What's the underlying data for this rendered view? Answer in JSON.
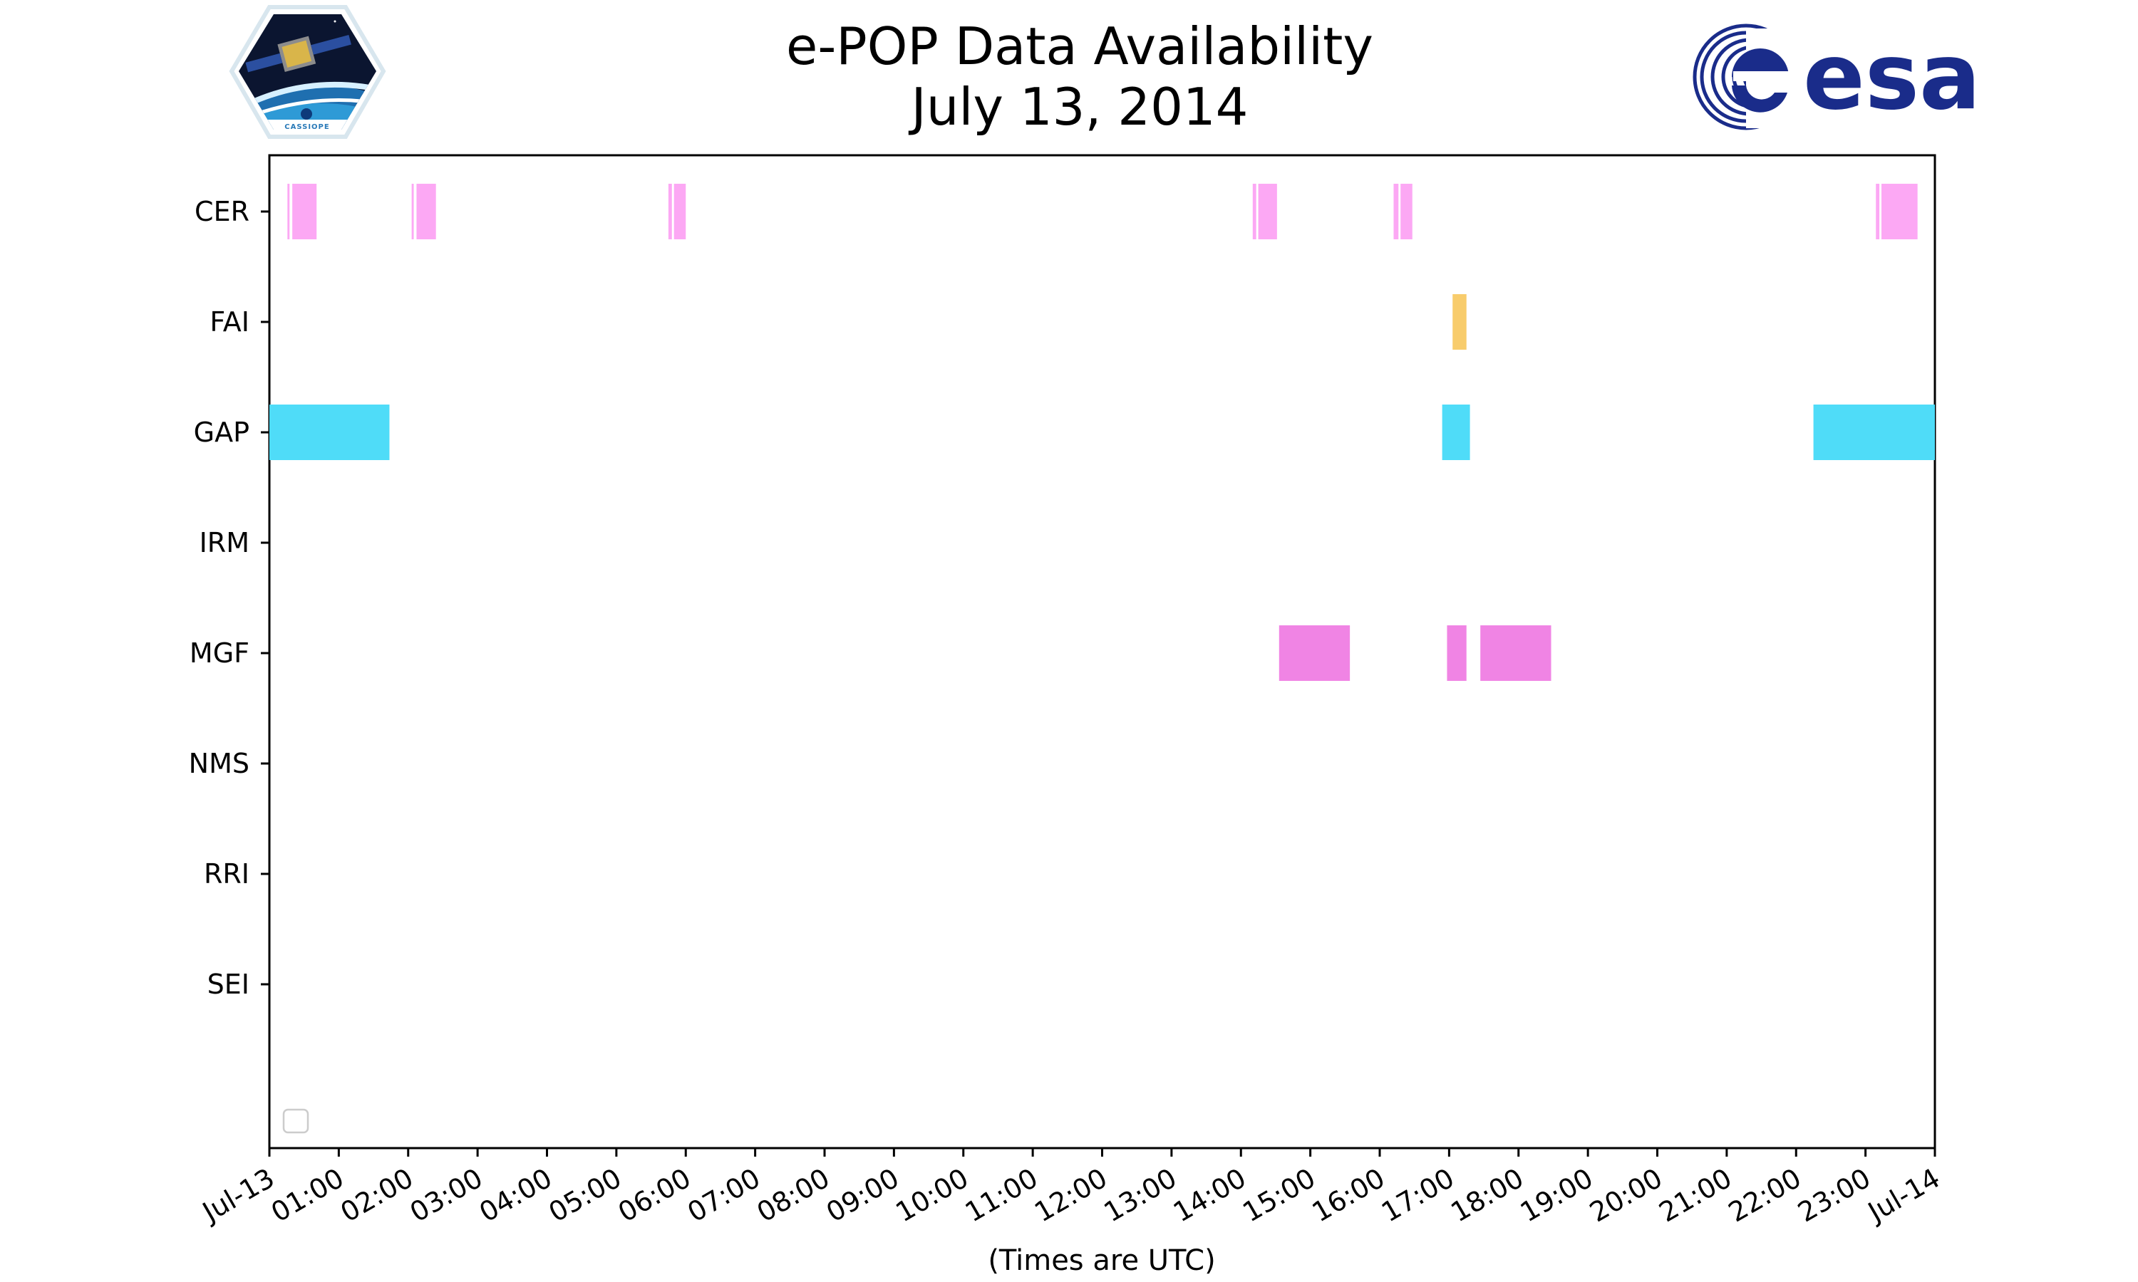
{
  "header": {
    "title_line1": "e-POP Data Availability",
    "title_line2": "July 13, 2014",
    "left_logo_text": "CASSIOPE",
    "right_logo_text": "esa"
  },
  "chart_data": {
    "type": "timeline",
    "title": "e-POP Data Availability\nJuly 13, 2014",
    "xlabel": "(Times are UTC)",
    "ylabel": "",
    "x_unit": "hours (UTC)",
    "xlim": [
      0,
      24
    ],
    "x_ticks": [
      "Jul-13",
      "01:00",
      "02:00",
      "03:00",
      "04:00",
      "05:00",
      "06:00",
      "07:00",
      "08:00",
      "09:00",
      "10:00",
      "11:00",
      "12:00",
      "13:00",
      "14:00",
      "15:00",
      "16:00",
      "17:00",
      "18:00",
      "19:00",
      "20:00",
      "21:00",
      "22:00",
      "23:00",
      "Jul-14"
    ],
    "categories": [
      "CER",
      "FAI",
      "GAP",
      "IRM",
      "MGF",
      "NMS",
      "RRI",
      "SEI"
    ],
    "legend": "bottom-left, empty",
    "grid": false,
    "series": [
      {
        "name": "CER",
        "color": "#fca8f4",
        "intervals": [
          [
            0.26,
            0.29
          ],
          [
            0.33,
            0.68
          ],
          [
            2.05,
            2.08
          ],
          [
            2.12,
            2.4
          ],
          [
            5.75,
            5.8
          ],
          [
            5.83,
            6.0
          ],
          [
            14.17,
            14.22
          ],
          [
            14.25,
            14.52
          ],
          [
            16.2,
            16.27
          ],
          [
            16.3,
            16.47
          ],
          [
            23.15,
            23.2
          ],
          [
            23.23,
            23.75
          ]
        ]
      },
      {
        "name": "FAI",
        "color": "#f8cc6c",
        "intervals": [
          [
            17.05,
            17.25
          ]
        ]
      },
      {
        "name": "GAP",
        "color": "#4fdcf8",
        "intervals": [
          [
            0.0,
            1.73
          ],
          [
            16.9,
            17.3
          ],
          [
            22.25,
            24.0
          ]
        ]
      },
      {
        "name": "IRM",
        "color": "#4fdcf8",
        "intervals": []
      },
      {
        "name": "MGF",
        "color": "#f084e4",
        "intervals": [
          [
            14.55,
            15.57
          ],
          [
            16.97,
            17.25
          ],
          [
            17.45,
            18.47
          ]
        ]
      },
      {
        "name": "NMS",
        "color": "#4fdcf8",
        "intervals": []
      },
      {
        "name": "RRI",
        "color": "#4fdcf8",
        "intervals": []
      },
      {
        "name": "SEI",
        "color": "#4fdcf8",
        "intervals": []
      }
    ]
  }
}
